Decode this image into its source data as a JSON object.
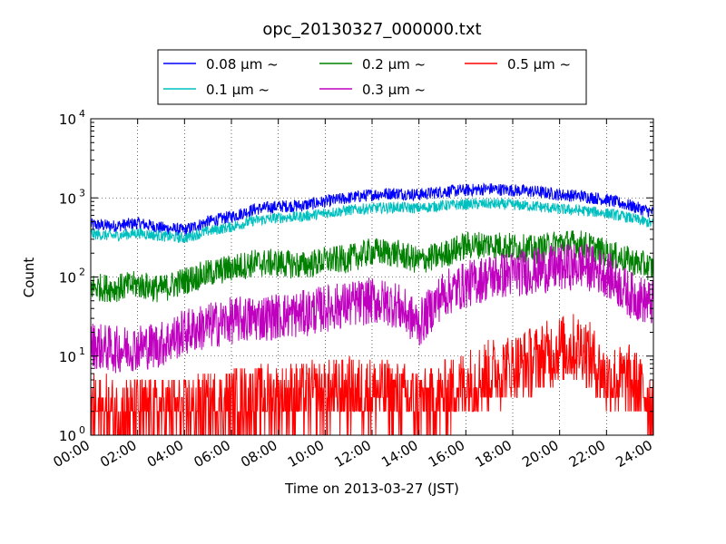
{
  "chart_data": {
    "type": "line",
    "title": "opc_20130327_000000.txt",
    "xlabel": "Time on 2013-03-27 (JST)",
    "ylabel": "Count",
    "yscale": "log",
    "ylim": [
      1,
      10000
    ],
    "xlim": [
      "00:00",
      "24:00"
    ],
    "x_ticks": [
      "00:00",
      "02:00",
      "04:00",
      "06:00",
      "08:00",
      "10:00",
      "12:00",
      "14:00",
      "16:00",
      "18:00",
      "20:00",
      "22:00",
      "24:00"
    ],
    "y_ticks": [
      {
        "value": 1,
        "base": "10",
        "exp": "0"
      },
      {
        "value": 10,
        "base": "10",
        "exp": "1"
      },
      {
        "value": 100,
        "base": "10",
        "exp": "2"
      },
      {
        "value": 1000,
        "base": "10",
        "exp": "3"
      },
      {
        "value": 10000,
        "base": "10",
        "exp": "4"
      }
    ],
    "grid": true,
    "legend_position": "top-center",
    "x_hours": [
      0,
      1,
      2,
      3,
      4,
      5,
      6,
      7,
      8,
      9,
      10,
      11,
      12,
      13,
      14,
      15,
      16,
      17,
      18,
      19,
      20,
      21,
      22,
      23,
      24
    ],
    "series": [
      {
        "name": "0.08 μm ~",
        "color": "#0000ff",
        "noise": 0.08,
        "values": [
          460,
          440,
          480,
          420,
          390,
          500,
          580,
          720,
          780,
          800,
          900,
          1000,
          1100,
          1150,
          1100,
          1200,
          1250,
          1300,
          1250,
          1200,
          1100,
          1050,
          950,
          800,
          650
        ]
      },
      {
        "name": "0.1 μm ~",
        "color": "#00bfbf",
        "noise": 0.07,
        "values": [
          350,
          330,
          360,
          330,
          310,
          380,
          430,
          520,
          560,
          580,
          640,
          700,
          740,
          760,
          740,
          800,
          830,
          840,
          820,
          780,
          720,
          690,
          640,
          560,
          470
        ]
      },
      {
        "name": "0.2 μm ~",
        "color": "#008000",
        "noise": 0.18,
        "values": [
          75,
          72,
          80,
          70,
          90,
          110,
          130,
          150,
          150,
          140,
          160,
          170,
          210,
          200,
          160,
          190,
          250,
          260,
          240,
          220,
          270,
          260,
          200,
          160,
          130
        ]
      },
      {
        "name": "0.3 μm ~",
        "color": "#bf00bf",
        "noise": 0.3,
        "values": [
          14,
          12,
          13,
          14,
          20,
          24,
          28,
          30,
          32,
          34,
          40,
          45,
          50,
          45,
          25,
          60,
          80,
          100,
          110,
          120,
          130,
          140,
          110,
          60,
          45
        ]
      },
      {
        "name": "0.5 μm ~",
        "color": "#ff0000",
        "noise": 0.45,
        "values": [
          2,
          2,
          2,
          2,
          2,
          2.3,
          2.6,
          2.8,
          3,
          3,
          3.2,
          3.5,
          3.5,
          3.2,
          2.5,
          3,
          4.5,
          6,
          7,
          9,
          12,
          13,
          5,
          5,
          2.5
        ]
      }
    ]
  }
}
